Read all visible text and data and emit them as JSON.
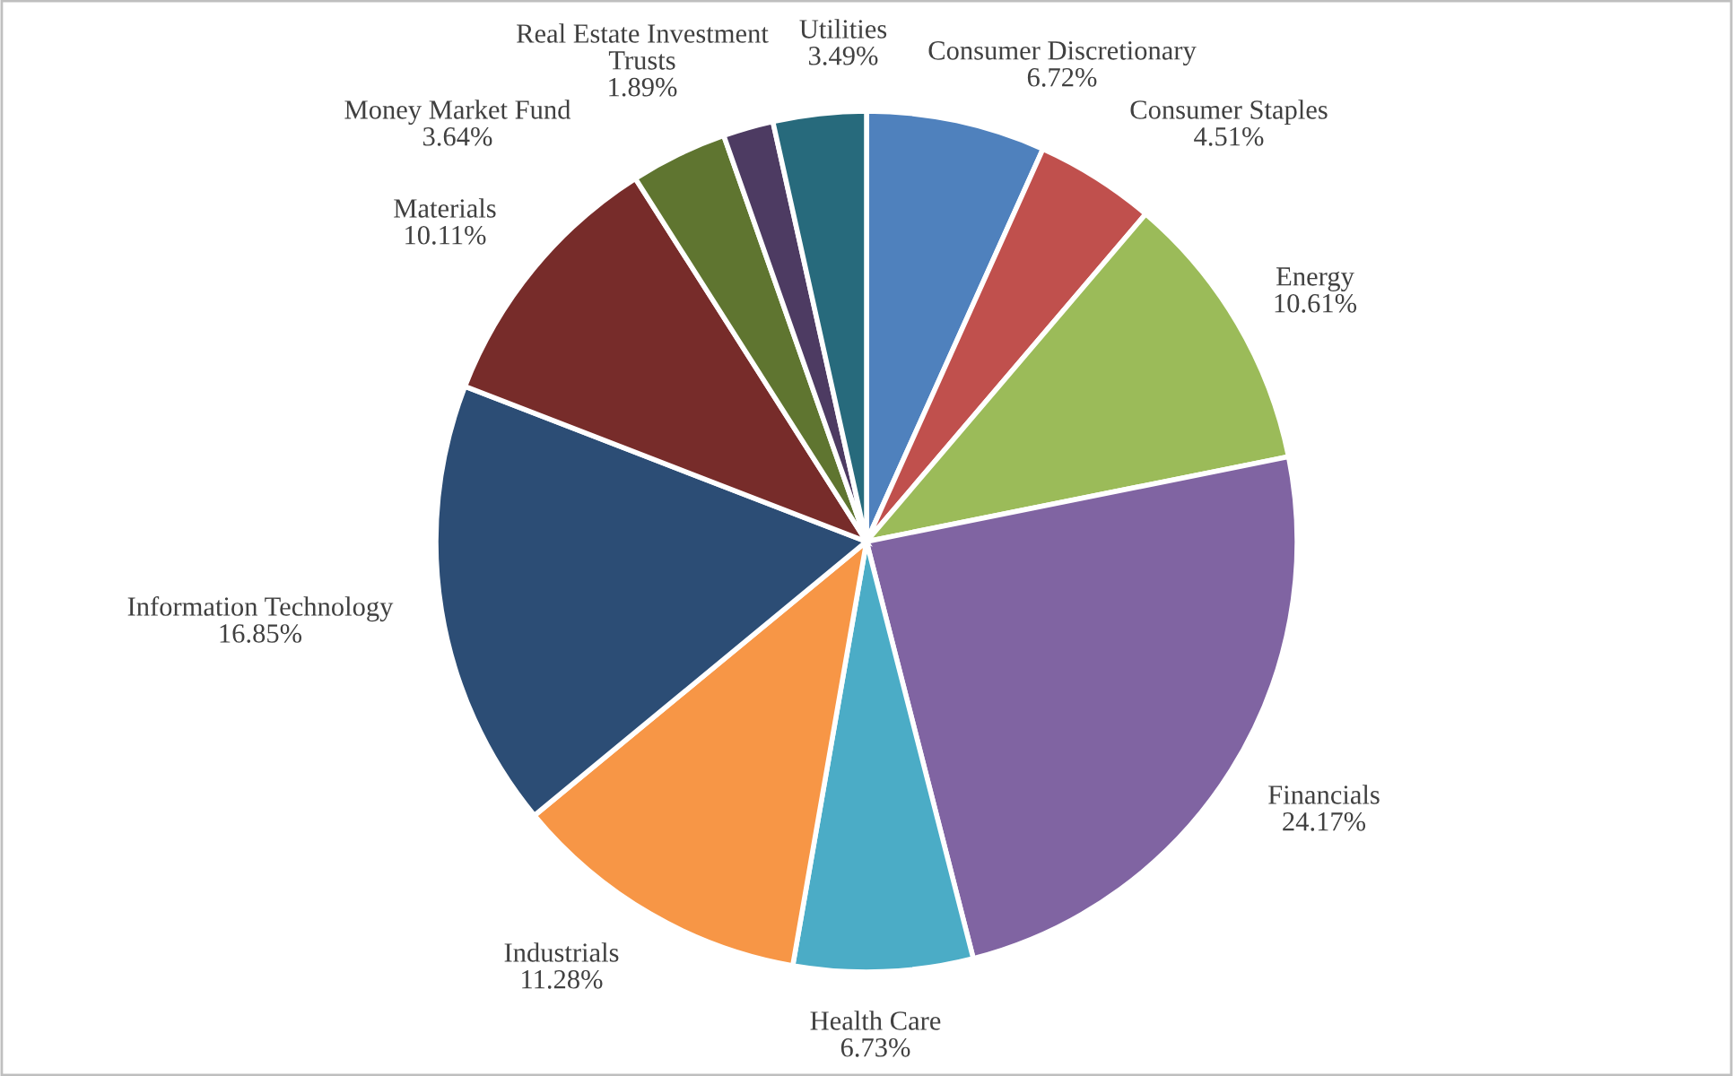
{
  "chart_data": {
    "type": "pie",
    "categories": [
      "Consumer Discretionary",
      "Consumer Staples",
      "Energy",
      "Financials",
      "Health Care",
      "Industrials",
      "Information Technology",
      "Materials",
      "Money Market Fund",
      "Real Estate Investment\nTrusts",
      "Utilities"
    ],
    "values": [
      6.72,
      4.51,
      10.61,
      24.17,
      6.73,
      11.28,
      16.85,
      10.11,
      3.64,
      1.89,
      3.49
    ],
    "value_labels": [
      "6.72%",
      "4.51%",
      "10.61%",
      "24.17%",
      "6.73%",
      "11.28%",
      "16.85%",
      "10.11%",
      "3.64%",
      "1.89%",
      "3.49%"
    ],
    "colors": [
      "#4f81bd",
      "#c0504d",
      "#9bbb59",
      "#8064a2",
      "#4bacc6",
      "#f79646",
      "#2c4d75",
      "#772c2a",
      "#5f7530",
      "#4d3b62",
      "#276a7c"
    ]
  }
}
